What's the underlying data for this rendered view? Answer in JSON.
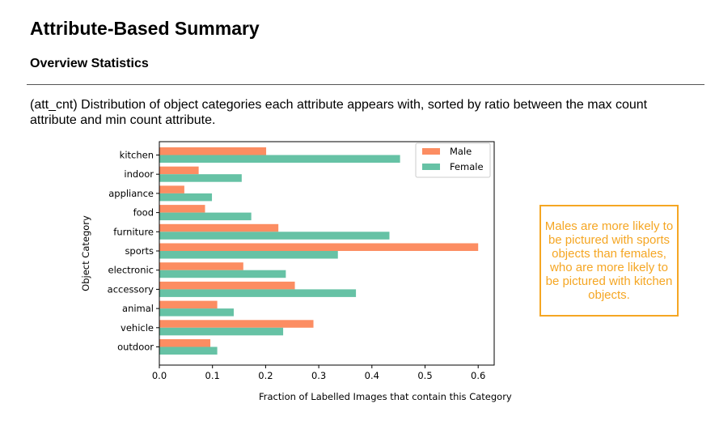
{
  "page": {
    "title": "Attribute-Based Summary",
    "section": "Overview Statistics",
    "description": "(att_cnt) Distribution of object categories each attribute appears with, sorted by ratio between the max count attribute and min count attribute.",
    "callout": "Males are more likely to be pictured with sports objects than females, who are more likely to be pictured with kitchen objects."
  },
  "chart_data": {
    "type": "bar",
    "orientation": "horizontal",
    "title": "",
    "xlabel": "Fraction of Labelled Images that contain this Category",
    "ylabel": "Object Category",
    "categories": [
      "kitchen",
      "indoor",
      "appliance",
      "food",
      "furniture",
      "sports",
      "electronic",
      "accessory",
      "animal",
      "vehicle",
      "outdoor"
    ],
    "series": [
      {
        "name": "Male",
        "color": "#fc8d62",
        "values": [
          0.201,
          0.074,
          0.047,
          0.086,
          0.224,
          0.6,
          0.158,
          0.255,
          0.109,
          0.29,
          0.096
        ]
      },
      {
        "name": "Female",
        "color": "#66c2a5",
        "values": [
          0.453,
          0.155,
          0.099,
          0.173,
          0.433,
          0.336,
          0.238,
          0.37,
          0.14,
          0.233,
          0.109
        ]
      }
    ],
    "xlim": [
      0,
      0.63
    ],
    "xticks": [
      "0.0",
      "0.1",
      "0.2",
      "0.3",
      "0.4",
      "0.5",
      "0.6"
    ],
    "legend": "top-right",
    "grid": false
  }
}
